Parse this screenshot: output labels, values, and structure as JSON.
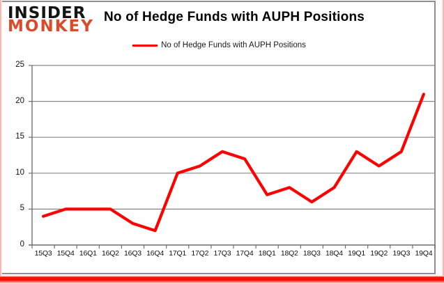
{
  "logo": {
    "line1": "INSIDER",
    "line2": "MONKEY",
    "line1_color": "#141414",
    "line2_color": "#d94b2b"
  },
  "header": {
    "title": "No of Hedge Funds with AUPH Positions"
  },
  "legend": {
    "label": "No of Hedge Funds with AUPH Positions",
    "line_color": "#ff0000"
  },
  "colors": {
    "line": "#ff0000",
    "gridline": "#878787",
    "axis": "#6f6f6f",
    "frame_border": "#8f8f8f",
    "glow": "#f50f02"
  },
  "chart_data": {
    "type": "line",
    "title": "No of Hedge Funds with AUPH Positions",
    "categories": [
      "15Q3",
      "15Q4",
      "16Q1",
      "16Q2",
      "16Q3",
      "16Q4",
      "17Q1",
      "17Q2",
      "17Q3",
      "17Q4",
      "18Q1",
      "18Q2",
      "18Q3",
      "18Q4",
      "19Q1",
      "19Q2",
      "19Q3",
      "19Q4"
    ],
    "series": [
      {
        "name": "No of Hedge Funds with AUPH Positions",
        "values": [
          4,
          5,
          5,
          5,
          3,
          2,
          10,
          11,
          13,
          12,
          7,
          8,
          6,
          8,
          13,
          11,
          13,
          21
        ]
      }
    ],
    "xlabel": "",
    "ylabel": "",
    "ylim": [
      0,
      25
    ],
    "ytick_step": 5,
    "grid": "horizontal",
    "legend_position": "top-center",
    "line_color": "#ff0000"
  }
}
